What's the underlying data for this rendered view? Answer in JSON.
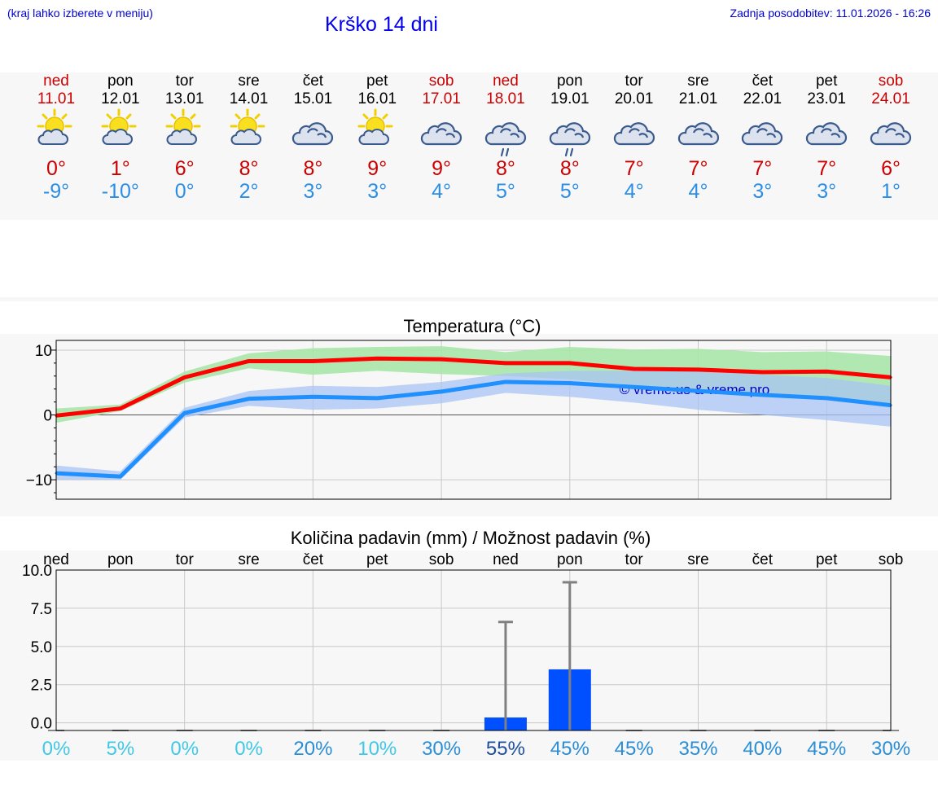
{
  "header": {
    "menu_hint": "(kraj lahko izberete v meniju)",
    "title": "Krško 14 dni",
    "updated": "Zadnja posodobitev: 11.01.2026 - 16:26"
  },
  "days": [
    {
      "name": "ned",
      "date": "11.01",
      "weekend": true,
      "icon": "sun-cloud-icon",
      "max": "0°",
      "min": "-9°"
    },
    {
      "name": "pon",
      "date": "12.01",
      "weekend": false,
      "icon": "sun-cloud-icon",
      "max": "1°",
      "min": "-10°"
    },
    {
      "name": "tor",
      "date": "13.01",
      "weekend": false,
      "icon": "sun-cloud-icon",
      "max": "6°",
      "min": "0°"
    },
    {
      "name": "sre",
      "date": "14.01",
      "weekend": false,
      "icon": "sun-cloud-icon",
      "max": "8°",
      "min": "2°"
    },
    {
      "name": "čet",
      "date": "15.01",
      "weekend": false,
      "icon": "cloud-icon",
      "max": "8°",
      "min": "3°"
    },
    {
      "name": "pet",
      "date": "16.01",
      "weekend": false,
      "icon": "sun-cloud-icon",
      "max": "9°",
      "min": "3°"
    },
    {
      "name": "sob",
      "date": "17.01",
      "weekend": true,
      "icon": "cloud-icon",
      "max": "9°",
      "min": "4°"
    },
    {
      "name": "ned",
      "date": "18.01",
      "weekend": true,
      "icon": "rain-cloud-icon",
      "max": "8°",
      "min": "5°"
    },
    {
      "name": "pon",
      "date": "19.01",
      "weekend": false,
      "icon": "rain-cloud-icon",
      "max": "8°",
      "min": "5°"
    },
    {
      "name": "tor",
      "date": "20.01",
      "weekend": false,
      "icon": "cloud-icon",
      "max": "7°",
      "min": "4°"
    },
    {
      "name": "sre",
      "date": "21.01",
      "weekend": false,
      "icon": "cloud-icon",
      "max": "7°",
      "min": "4°"
    },
    {
      "name": "čet",
      "date": "22.01",
      "weekend": false,
      "icon": "cloud-icon",
      "max": "7°",
      "min": "3°"
    },
    {
      "name": "pet",
      "date": "23.01",
      "weekend": false,
      "icon": "cloud-icon",
      "max": "7°",
      "min": "3°"
    },
    {
      "name": "sob",
      "date": "24.01",
      "weekend": true,
      "icon": "cloud-icon",
      "max": "6°",
      "min": "1°"
    }
  ],
  "colors": {
    "max_line": "#ff0000",
    "max_band": "#a8e6a8",
    "min_line": "#2090ff",
    "min_band": "#a8c4f4",
    "precip_bar": "#0050ff",
    "error_bar": "#808080",
    "weekend_text": "#cc0000"
  },
  "chart_data": [
    {
      "type": "line",
      "title": "Temperatura (°C)",
      "watermark": "© vreme.us & vreme.pro",
      "ylim": [
        -13,
        11.5
      ],
      "yticks": [
        {
          "v": 10,
          "label": "10"
        },
        {
          "v": 0,
          "label": "0"
        },
        {
          "v": -10,
          "label": "−10"
        }
      ],
      "x": [
        0,
        1,
        2,
        3,
        4,
        5,
        6,
        7,
        8,
        9,
        10,
        11,
        12,
        13
      ],
      "series": [
        {
          "key": "max",
          "values": [
            -0.1,
            1.0,
            5.8,
            8.3,
            8.3,
            8.7,
            8.6,
            8.0,
            8.0,
            7.1,
            7.0,
            6.6,
            6.7,
            5.8
          ],
          "band_low": [
            -1.2,
            0.6,
            5.0,
            7.2,
            6.2,
            6.8,
            6.3,
            6.0,
            5.5,
            4.6,
            3.8,
            3.0,
            2.8,
            1.8
          ],
          "band_high": [
            1.0,
            1.6,
            6.7,
            9.5,
            10.3,
            10.5,
            10.6,
            9.7,
            10.5,
            10.1,
            10.2,
            9.7,
            9.8,
            9.1
          ]
        },
        {
          "key": "min",
          "values": [
            -9.0,
            -9.5,
            0.3,
            2.5,
            2.8,
            2.6,
            3.6,
            5.1,
            4.9,
            4.3,
            3.7,
            3.1,
            2.6,
            1.5
          ],
          "band_low": [
            -10.0,
            -10.0,
            -0.4,
            1.4,
            0.8,
            1.0,
            1.8,
            3.4,
            2.8,
            1.9,
            0.8,
            0.0,
            -0.8,
            -1.8
          ],
          "band_high": [
            -7.8,
            -8.7,
            1.1,
            3.7,
            4.5,
            4.3,
            5.1,
            6.4,
            6.8,
            6.8,
            6.9,
            6.2,
            5.7,
            4.5
          ]
        }
      ]
    },
    {
      "type": "bar",
      "title": "Količina padavin (mm) / Možnost padavin (%)",
      "ylim": [
        -0.5,
        10.0
      ],
      "yticks": [
        {
          "v": 10,
          "label": "10.0"
        },
        {
          "v": 7.5,
          "label": "7.5"
        },
        {
          "v": 5,
          "label": "5.0"
        },
        {
          "v": 2.5,
          "label": "2.5"
        },
        {
          "v": 0,
          "label": "0.0"
        }
      ],
      "categories": [
        "ned",
        "pon",
        "tor",
        "sre",
        "čet",
        "pet",
        "sob",
        "ned",
        "pon",
        "tor",
        "sre",
        "čet",
        "pet",
        "sob"
      ],
      "values": [
        0,
        0,
        0,
        0,
        0,
        0,
        0,
        0.35,
        3.5,
        0,
        0,
        0,
        0,
        0
      ],
      "error_high": [
        0,
        0,
        0,
        0,
        0,
        0,
        0,
        6.6,
        9.2,
        0,
        0,
        0,
        0,
        0
      ],
      "probability": [
        "0%",
        "5%",
        "0%",
        "0%",
        "20%",
        "10%",
        "30%",
        "55%",
        "45%",
        "45%",
        "35%",
        "40%",
        "45%",
        "30%"
      ],
      "probability_values": [
        0,
        5,
        0,
        0,
        20,
        10,
        30,
        55,
        45,
        45,
        35,
        40,
        45,
        30
      ]
    }
  ]
}
